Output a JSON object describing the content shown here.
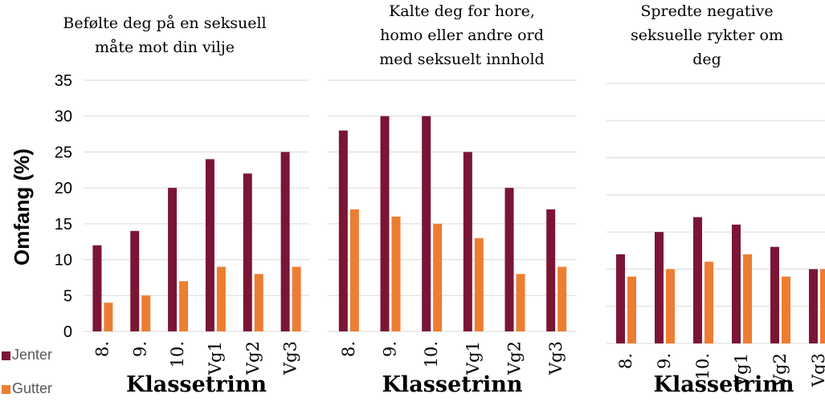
{
  "y_label": "Omfang (%)",
  "chart_data": [
    {
      "type": "bar",
      "title": [
        "Befølte deg på en seksuell",
        "måte mot din vilje"
      ],
      "x_label": "Klassetrinn",
      "categories": [
        "8.",
        "9.",
        "10.",
        "Vg1",
        "Vg2",
        "Vg3"
      ],
      "series": [
        {
          "name": "Jenter",
          "color": "#7b1535",
          "values": [
            12,
            14,
            20,
            24,
            22,
            25
          ]
        },
        {
          "name": "Gutter",
          "color": "#ed7d31",
          "values": [
            4,
            5,
            7,
            9,
            8,
            9
          ]
        }
      ],
      "ylim": [
        0,
        35
      ],
      "yticks": [
        0,
        5,
        10,
        15,
        20,
        25,
        30,
        35
      ],
      "grid": true
    },
    {
      "type": "bar",
      "title": [
        "Kalte deg for hore,",
        "homo eller andre ord",
        "med seksuelt innhold"
      ],
      "x_label": "Klassetrinn",
      "categories": [
        "8.",
        "9.",
        "10.",
        "Vg1",
        "Vg2",
        "Vg3"
      ],
      "series": [
        {
          "name": "Jenter",
          "color": "#7b1535",
          "values": [
            28,
            30,
            30,
            25,
            20,
            17
          ]
        },
        {
          "name": "Gutter",
          "color": "#ed7d31",
          "values": [
            17,
            16,
            15,
            13,
            8,
            9
          ]
        }
      ],
      "ylim": [
        0,
        35
      ],
      "yticks": [
        0,
        5,
        10,
        15,
        20,
        25,
        30,
        35
      ],
      "grid": true
    },
    {
      "type": "bar",
      "title": [
        "Spredte negative",
        "seksuelle rykter om",
        "deg"
      ],
      "x_label": "Klassetrinn",
      "categories": [
        "8.",
        "9.",
        "10.",
        "Vg1",
        "Vg2",
        "Vg3"
      ],
      "series": [
        {
          "name": "Jenter",
          "color": "#7b1535",
          "values": [
            12,
            15,
            17,
            16,
            13,
            10
          ]
        },
        {
          "name": "Gutter",
          "color": "#ed7d31",
          "values": [
            9,
            10,
            11,
            12,
            9,
            10
          ]
        }
      ],
      "ylim": [
        0,
        35
      ],
      "yticks": [
        0,
        5,
        10,
        15,
        20,
        25,
        30,
        35
      ],
      "grid": true
    }
  ]
}
